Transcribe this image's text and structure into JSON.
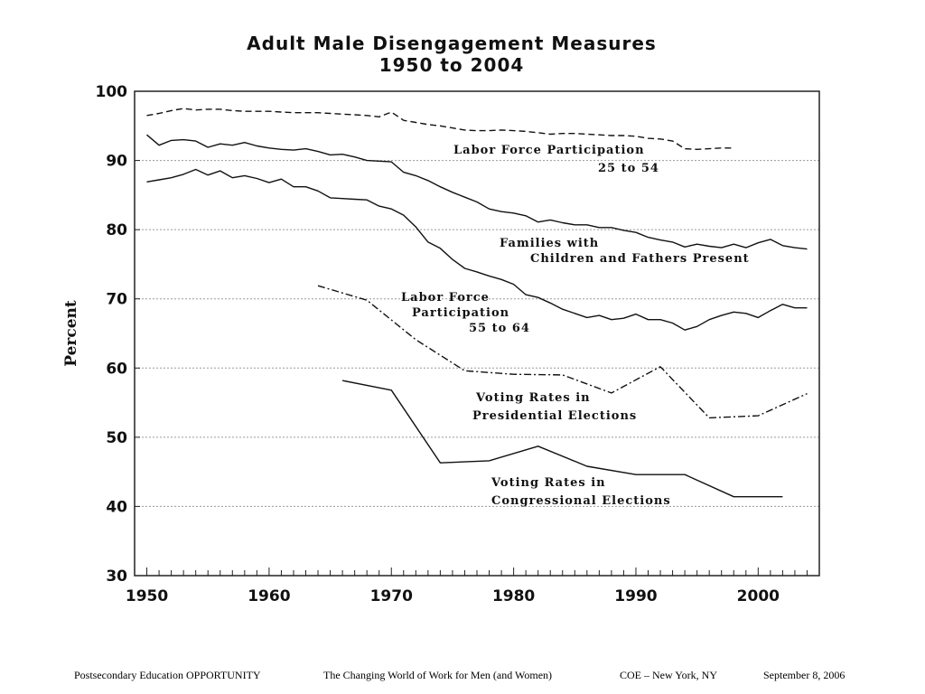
{
  "chart_data": {
    "type": "line",
    "title": [
      "Adult Male Disengagement Measures",
      "1950 to 2004"
    ],
    "ylabel": "Percent",
    "xlabel": "",
    "xlim": [
      1949,
      2005
    ],
    "ylim": [
      30,
      100
    ],
    "x_ticks": [
      1950,
      1960,
      1970,
      1980,
      1990,
      2000
    ],
    "y_ticks": [
      30,
      40,
      50,
      60,
      70,
      80,
      90,
      100
    ],
    "grid": true,
    "series": [
      {
        "name": "Labor Force Participation 25 to 54",
        "style": "dashed",
        "label_lines": [
          "Labor Force Participation",
          "25 to 54"
        ],
        "points": [
          [
            1950,
            96.5
          ],
          [
            1951,
            96.8
          ],
          [
            1952,
            97.2
          ],
          [
            1953,
            97.5
          ],
          [
            1954,
            97.3
          ],
          [
            1955,
            97.4
          ],
          [
            1956,
            97.4
          ],
          [
            1957,
            97.2
          ],
          [
            1958,
            97.1
          ],
          [
            1959,
            97.1
          ],
          [
            1960,
            97.1
          ],
          [
            1961,
            97.0
          ],
          [
            1962,
            96.9
          ],
          [
            1963,
            96.9
          ],
          [
            1964,
            96.9
          ],
          [
            1965,
            96.8
          ],
          [
            1966,
            96.7
          ],
          [
            1967,
            96.6
          ],
          [
            1968,
            96.5
          ],
          [
            1969,
            96.3
          ],
          [
            1970,
            97.0
          ],
          [
            1971,
            95.8
          ],
          [
            1972,
            95.5
          ],
          [
            1973,
            95.2
          ],
          [
            1974,
            95.0
          ],
          [
            1975,
            94.7
          ],
          [
            1976,
            94.4
          ],
          [
            1977,
            94.3
          ],
          [
            1978,
            94.3
          ],
          [
            1979,
            94.4
          ],
          [
            1980,
            94.3
          ],
          [
            1981,
            94.2
          ],
          [
            1982,
            94.0
          ],
          [
            1983,
            93.8
          ],
          [
            1984,
            93.9
          ],
          [
            1985,
            93.9
          ],
          [
            1986,
            93.8
          ],
          [
            1987,
            93.7
          ],
          [
            1988,
            93.6
          ],
          [
            1989,
            93.6
          ],
          [
            1990,
            93.5
          ],
          [
            1991,
            93.2
          ],
          [
            1992,
            93.1
          ],
          [
            1993,
            92.8
          ],
          [
            1994,
            91.7
          ],
          [
            1995,
            91.6
          ],
          [
            1996,
            91.7
          ],
          [
            1997,
            91.8
          ],
          [
            1998,
            91.8
          ]
        ]
      },
      {
        "name": "Families with Children and Fathers Present",
        "style": "solid",
        "label_lines": [
          "Families with",
          "Children and Fathers Present"
        ],
        "points": [
          [
            1950,
            93.7
          ],
          [
            1951,
            92.2
          ],
          [
            1952,
            92.9
          ],
          [
            1953,
            93.0
          ],
          [
            1954,
            92.8
          ],
          [
            1955,
            91.9
          ],
          [
            1956,
            92.4
          ],
          [
            1957,
            92.2
          ],
          [
            1958,
            92.6
          ],
          [
            1959,
            92.1
          ],
          [
            1960,
            91.8
          ],
          [
            1961,
            91.6
          ],
          [
            1962,
            91.5
          ],
          [
            1963,
            91.7
          ],
          [
            1964,
            91.3
          ],
          [
            1965,
            90.8
          ],
          [
            1966,
            90.9
          ],
          [
            1967,
            90.5
          ],
          [
            1968,
            90.0
          ],
          [
            1969,
            89.9
          ],
          [
            1970,
            89.8
          ],
          [
            1971,
            88.3
          ],
          [
            1972,
            87.8
          ],
          [
            1973,
            87.1
          ],
          [
            1974,
            86.2
          ],
          [
            1975,
            85.4
          ],
          [
            1976,
            84.7
          ],
          [
            1977,
            84.0
          ],
          [
            1978,
            83.0
          ],
          [
            1979,
            82.6
          ],
          [
            1980,
            82.4
          ],
          [
            1981,
            82.0
          ],
          [
            1982,
            81.1
          ],
          [
            1983,
            81.4
          ],
          [
            1984,
            81.0
          ],
          [
            1985,
            80.7
          ],
          [
            1986,
            80.7
          ],
          [
            1987,
            80.3
          ],
          [
            1988,
            80.3
          ],
          [
            1989,
            79.9
          ],
          [
            1990,
            79.6
          ],
          [
            1991,
            78.9
          ],
          [
            1992,
            78.5
          ],
          [
            1993,
            78.2
          ],
          [
            1994,
            77.5
          ],
          [
            1995,
            77.9
          ],
          [
            1996,
            77.6
          ],
          [
            1997,
            77.4
          ],
          [
            1998,
            77.9
          ],
          [
            1999,
            77.4
          ],
          [
            2000,
            78.1
          ],
          [
            2001,
            78.6
          ],
          [
            2002,
            77.7
          ],
          [
            2003,
            77.4
          ],
          [
            2004,
            77.2
          ]
        ]
      },
      {
        "name": "Labor Force Participation 55 to 64",
        "style": "solid",
        "label_lines": [
          "Labor Force",
          "Participation",
          "55 to 64"
        ],
        "points": [
          [
            1950,
            86.9
          ],
          [
            1951,
            87.2
          ],
          [
            1952,
            87.5
          ],
          [
            1953,
            88.0
          ],
          [
            1954,
            88.7
          ],
          [
            1955,
            87.9
          ],
          [
            1956,
            88.5
          ],
          [
            1957,
            87.5
          ],
          [
            1958,
            87.8
          ],
          [
            1959,
            87.4
          ],
          [
            1960,
            86.8
          ],
          [
            1961,
            87.3
          ],
          [
            1962,
            86.2
          ],
          [
            1963,
            86.2
          ],
          [
            1964,
            85.6
          ],
          [
            1965,
            84.6
          ],
          [
            1966,
            84.5
          ],
          [
            1967,
            84.4
          ],
          [
            1968,
            84.3
          ],
          [
            1969,
            83.4
          ],
          [
            1970,
            83.0
          ],
          [
            1971,
            82.1
          ],
          [
            1972,
            80.4
          ],
          [
            1973,
            78.2
          ],
          [
            1974,
            77.3
          ],
          [
            1975,
            75.7
          ],
          [
            1976,
            74.4
          ],
          [
            1977,
            73.9
          ],
          [
            1978,
            73.3
          ],
          [
            1979,
            72.8
          ],
          [
            1980,
            72.1
          ],
          [
            1981,
            70.6
          ],
          [
            1982,
            70.2
          ],
          [
            1983,
            69.4
          ],
          [
            1984,
            68.5
          ],
          [
            1985,
            67.9
          ],
          [
            1986,
            67.3
          ],
          [
            1987,
            67.6
          ],
          [
            1988,
            67.0
          ],
          [
            1989,
            67.2
          ],
          [
            1990,
            67.8
          ],
          [
            1991,
            67.0
          ],
          [
            1992,
            67.0
          ],
          [
            1993,
            66.5
          ],
          [
            1994,
            65.5
          ],
          [
            1995,
            66.0
          ],
          [
            1996,
            67.0
          ],
          [
            1997,
            67.6
          ],
          [
            1998,
            68.1
          ],
          [
            1999,
            67.9
          ],
          [
            2000,
            67.3
          ],
          [
            2001,
            68.3
          ],
          [
            2002,
            69.2
          ],
          [
            2003,
            68.7
          ],
          [
            2004,
            68.7
          ]
        ]
      },
      {
        "name": "Voting Rates in Presidential Elections",
        "style": "dashdot",
        "label_lines": [
          "Voting Rates in",
          "Presidential Elections"
        ],
        "points": [
          [
            1964,
            71.9
          ],
          [
            1968,
            69.8
          ],
          [
            1972,
            64.1
          ],
          [
            1976,
            59.6
          ],
          [
            1980,
            59.1
          ],
          [
            1984,
            59.0
          ],
          [
            1988,
            56.4
          ],
          [
            1992,
            60.2
          ],
          [
            1996,
            52.8
          ],
          [
            2000,
            53.1
          ],
          [
            2004,
            56.3
          ]
        ]
      },
      {
        "name": "Voting Rates in Congressional Elections",
        "style": "solid",
        "label_lines": [
          "Voting Rates in",
          "Congressional Elections"
        ],
        "points": [
          [
            1966,
            58.2
          ],
          [
            1970,
            56.8
          ],
          [
            1974,
            46.3
          ],
          [
            1978,
            46.6
          ],
          [
            1982,
            48.7
          ],
          [
            1986,
            45.8
          ],
          [
            1990,
            44.6
          ],
          [
            1994,
            44.6
          ],
          [
            1998,
            41.4
          ],
          [
            2002,
            41.4
          ]
        ]
      }
    ]
  },
  "footer": {
    "item1": "Postsecondary Education OPPORTUNITY",
    "item2": "The Changing World of Work for Men (and Women)",
    "item3": "COE – New York, NY",
    "item4": "September 8, 2006"
  }
}
